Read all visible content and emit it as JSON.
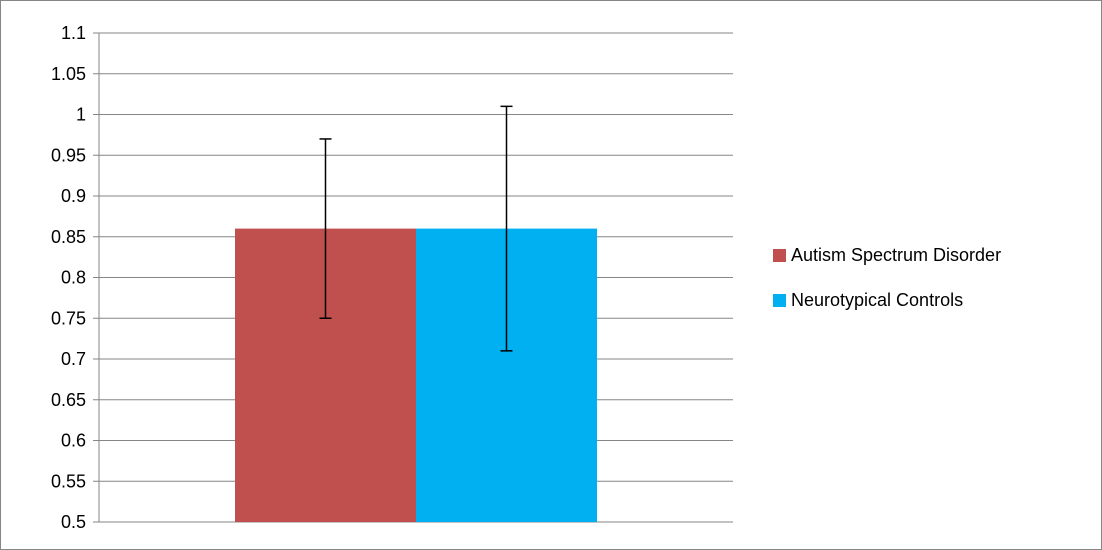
{
  "chart_data": {
    "type": "bar",
    "title": "",
    "xlabel": "",
    "ylabel": "",
    "ylim": [
      0.5,
      1.1
    ],
    "yticks": [
      0.5,
      0.55,
      0.6,
      0.65,
      0.7,
      0.75,
      0.8,
      0.85,
      0.9,
      0.95,
      1,
      1.05,
      1.1
    ],
    "grid": true,
    "legend_position": "right",
    "series": [
      {
        "name": "Autism Spectrum Disorder",
        "value": 0.86,
        "error_low": 0.75,
        "error_high": 0.97,
        "color": "#C0504D"
      },
      {
        "name": "Neurotypical Controls",
        "value": 0.86,
        "error_low": 0.71,
        "error_high": 1.01,
        "color": "#00B0F0"
      }
    ]
  }
}
